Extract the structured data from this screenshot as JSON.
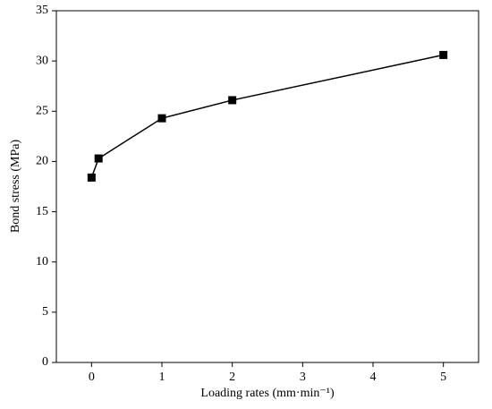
{
  "chart_data": {
    "type": "line",
    "x_label": "Loading rates (mm·min⁻¹)",
    "y_label": "Bond stress (MPa)",
    "x": [
      0,
      0.1,
      1,
      2,
      5
    ],
    "series": [
      {
        "color": "#000000",
        "values": [
          18.4,
          20.3,
          24.3,
          26.1,
          30.6
        ]
      }
    ],
    "xlim": [
      -0.5,
      5.5
    ],
    "xticks": [
      0,
      1,
      2,
      3,
      4,
      5
    ],
    "ylim": [
      0,
      35
    ],
    "yticks": [
      0,
      5,
      10,
      15,
      20,
      25,
      30,
      35
    ]
  }
}
